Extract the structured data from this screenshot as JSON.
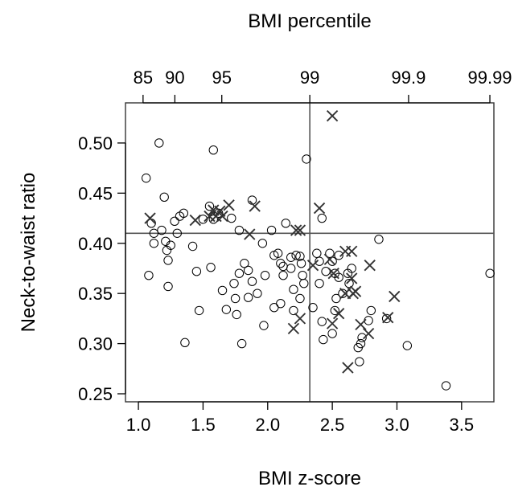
{
  "chart_data": {
    "type": "scatter",
    "title": "",
    "xlabel": "BMI z-score",
    "ylabel": "Neck-to-waist ratio",
    "top_axis_label": "BMI percentile",
    "xlim": [
      0.9,
      3.75
    ],
    "ylim": [
      0.242,
      0.54
    ],
    "x_ticks": [
      "1.0",
      "1.5",
      "2.0",
      "2.5",
      "3.0",
      "3.5"
    ],
    "y_ticks": [
      "0.25",
      "0.30",
      "0.35",
      "0.40",
      "0.45",
      "0.50"
    ],
    "top_ticks": [
      {
        "label": "85",
        "z": 1.036
      },
      {
        "label": "90",
        "z": 1.282
      },
      {
        "label": "95",
        "z": 1.645
      },
      {
        "label": "99",
        "z": 2.326
      },
      {
        "label": "99.9",
        "z": 3.09
      },
      {
        "label": "99.99",
        "z": 3.719
      }
    ],
    "reference_lines": {
      "x": 2.326,
      "y": 0.41
    },
    "grid": false,
    "series": [
      {
        "marker": "circle",
        "points": [
          [
            1.06,
            0.465
          ],
          [
            1.16,
            0.5
          ],
          [
            1.58,
            0.493
          ],
          [
            2.3,
            0.484
          ],
          [
            1.2,
            0.446
          ],
          [
            1.88,
            0.443
          ],
          [
            1.1,
            0.42
          ],
          [
            1.12,
            0.41
          ],
          [
            1.12,
            0.4
          ],
          [
            1.18,
            0.413
          ],
          [
            1.21,
            0.402
          ],
          [
            1.25,
            0.398
          ],
          [
            1.22,
            0.393
          ],
          [
            1.23,
            0.383
          ],
          [
            1.28,
            0.422
          ],
          [
            1.32,
            0.427
          ],
          [
            1.35,
            0.43
          ],
          [
            1.3,
            0.41
          ],
          [
            1.42,
            0.397
          ],
          [
            1.5,
            0.424
          ],
          [
            1.55,
            0.437
          ],
          [
            1.58,
            0.424
          ],
          [
            1.62,
            0.43
          ],
          [
            1.72,
            0.425
          ],
          [
            1.78,
            0.413
          ],
          [
            1.08,
            0.368
          ],
          [
            1.23,
            0.357
          ],
          [
            1.36,
            0.301
          ],
          [
            1.47,
            0.333
          ],
          [
            1.45,
            0.372
          ],
          [
            1.56,
            0.376
          ],
          [
            1.65,
            0.353
          ],
          [
            1.68,
            0.334
          ],
          [
            1.75,
            0.345
          ],
          [
            1.76,
            0.329
          ],
          [
            1.74,
            0.36
          ],
          [
            1.78,
            0.37
          ],
          [
            1.8,
            0.3
          ],
          [
            1.82,
            0.38
          ],
          [
            1.85,
            0.373
          ],
          [
            1.85,
            0.346
          ],
          [
            1.88,
            0.362
          ],
          [
            1.92,
            0.35
          ],
          [
            1.98,
            0.368
          ],
          [
            1.97,
            0.318
          ],
          [
            1.96,
            0.4
          ],
          [
            2.03,
            0.413
          ],
          [
            2.05,
            0.388
          ],
          [
            2.08,
            0.39
          ],
          [
            2.1,
            0.38
          ],
          [
            2.12,
            0.377
          ],
          [
            2.12,
            0.368
          ],
          [
            2.1,
            0.34
          ],
          [
            2.05,
            0.336
          ],
          [
            2.14,
            0.42
          ],
          [
            2.18,
            0.386
          ],
          [
            2.18,
            0.375
          ],
          [
            2.2,
            0.333
          ],
          [
            2.2,
            0.354
          ],
          [
            2.22,
            0.388
          ],
          [
            2.25,
            0.387
          ],
          [
            2.27,
            0.368
          ],
          [
            2.28,
            0.36
          ],
          [
            2.25,
            0.345
          ],
          [
            2.26,
            0.38
          ],
          [
            2.35,
            0.336
          ],
          [
            2.38,
            0.39
          ],
          [
            2.4,
            0.382
          ],
          [
            2.42,
            0.425
          ],
          [
            2.4,
            0.36
          ],
          [
            2.42,
            0.322
          ],
          [
            2.43,
            0.304
          ],
          [
            2.45,
            0.372
          ],
          [
            2.48,
            0.39
          ],
          [
            2.5,
            0.382
          ],
          [
            2.52,
            0.37
          ],
          [
            2.53,
            0.345
          ],
          [
            2.55,
            0.366
          ],
          [
            2.55,
            0.388
          ],
          [
            2.58,
            0.35
          ],
          [
            2.52,
            0.333
          ],
          [
            2.5,
            0.31
          ],
          [
            2.62,
            0.37
          ],
          [
            2.65,
            0.375
          ],
          [
            2.63,
            0.36
          ],
          [
            2.7,
            0.296
          ],
          [
            2.72,
            0.3
          ],
          [
            2.73,
            0.306
          ],
          [
            2.71,
            0.282
          ],
          [
            2.78,
            0.323
          ],
          [
            2.8,
            0.333
          ],
          [
            2.86,
            0.404
          ],
          [
            2.92,
            0.325
          ],
          [
            3.08,
            0.298
          ],
          [
            3.38,
            0.258
          ],
          [
            3.72,
            0.37
          ]
        ]
      },
      {
        "marker": "x",
        "points": [
          [
            2.5,
            0.527
          ],
          [
            1.09,
            0.425
          ],
          [
            1.44,
            0.423
          ],
          [
            1.55,
            0.427
          ],
          [
            1.58,
            0.433
          ],
          [
            1.6,
            0.427
          ],
          [
            1.63,
            0.432
          ],
          [
            1.65,
            0.427
          ],
          [
            1.7,
            0.438
          ],
          [
            1.9,
            0.437
          ],
          [
            1.86,
            0.409
          ],
          [
            2.22,
            0.413
          ],
          [
            2.25,
            0.413
          ],
          [
            2.4,
            0.435
          ],
          [
            2.35,
            0.378
          ],
          [
            2.48,
            0.384
          ],
          [
            2.51,
            0.37
          ],
          [
            2.6,
            0.392
          ],
          [
            2.65,
            0.392
          ],
          [
            2.79,
            0.378
          ],
          [
            2.6,
            0.35
          ],
          [
            2.65,
            0.365
          ],
          [
            2.68,
            0.352
          ],
          [
            2.66,
            0.35
          ],
          [
            2.5,
            0.32
          ],
          [
            2.55,
            0.33
          ],
          [
            2.72,
            0.319
          ],
          [
            2.78,
            0.31
          ],
          [
            2.93,
            0.326
          ],
          [
            2.98,
            0.347
          ],
          [
            2.62,
            0.276
          ],
          [
            2.2,
            0.315
          ],
          [
            2.25,
            0.325
          ]
        ]
      }
    ]
  }
}
